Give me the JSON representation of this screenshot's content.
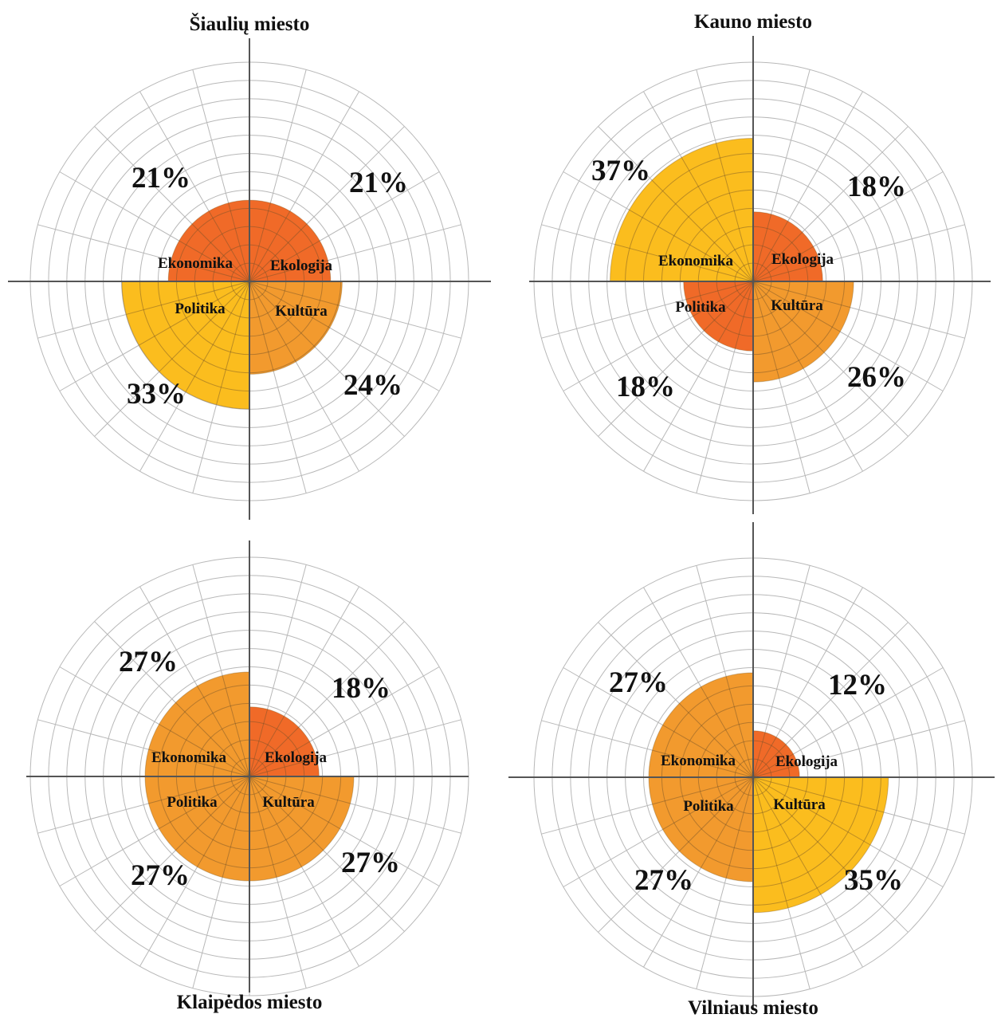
{
  "chart_data": [
    {
      "type": "polar-area",
      "title": "Šiaulių miesto",
      "series": [
        {
          "name": "Ekonomika",
          "percent_label": "21%",
          "value": 21,
          "color": "#f06a28"
        },
        {
          "name": "Ekologija",
          "percent_label": "21%",
          "value": 21,
          "color": "#f06a28"
        },
        {
          "name": "Kultūra",
          "percent_label": "24%",
          "value": 24,
          "color": "#f29a2e"
        },
        {
          "name": "Politika",
          "percent_label": "33%",
          "value": 33,
          "color": "#fbbd1e"
        }
      ]
    },
    {
      "type": "polar-area",
      "title": "Kauno miesto",
      "series": [
        {
          "name": "Ekonomika",
          "percent_label": "37%",
          "value": 37,
          "color": "#fbbd1e"
        },
        {
          "name": "Ekologija",
          "percent_label": "18%",
          "value": 18,
          "color": "#f06a28"
        },
        {
          "name": "Kultūra",
          "percent_label": "26%",
          "value": 26,
          "color": "#f29a2e"
        },
        {
          "name": "Politika",
          "percent_label": "18%",
          "value": 18,
          "color": "#f06a28"
        }
      ]
    },
    {
      "type": "polar-area",
      "title": "Klaipėdos miesto",
      "series": [
        {
          "name": "Ekonomika",
          "percent_label": "27%",
          "value": 27,
          "color": "#f29a2e"
        },
        {
          "name": "Ekologija",
          "percent_label": "18%",
          "value": 18,
          "color": "#f06a28"
        },
        {
          "name": "Kultūra",
          "percent_label": "27%",
          "value": 27,
          "color": "#f29a2e"
        },
        {
          "name": "Politika",
          "percent_label": "27%",
          "value": 27,
          "color": "#f29a2e"
        }
      ]
    },
    {
      "type": "polar-area",
      "title": "Vilniaus miesto",
      "series": [
        {
          "name": "Ekonomika",
          "percent_label": "27%",
          "value": 27,
          "color": "#f29a2e"
        },
        {
          "name": "Ekologija",
          "percent_label": "12%",
          "value": 12,
          "color": "#f06a28"
        },
        {
          "name": "Kultūra",
          "percent_label": "35%",
          "value": 35,
          "color": "#fbbd1e"
        },
        {
          "name": "Politika",
          "percent_label": "27%",
          "value": 27,
          "color": "#f29a2e"
        }
      ]
    }
  ]
}
